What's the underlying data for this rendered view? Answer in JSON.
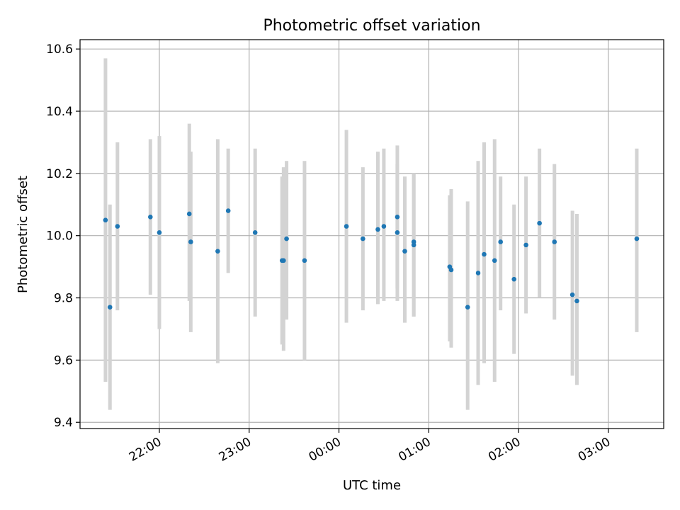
{
  "chart_data": {
    "type": "scatter",
    "title": "Photometric offset variation",
    "xlabel": "UTC time",
    "ylabel": "Photometric offset",
    "xlim": [
      "21:07",
      "03:37"
    ],
    "ylim": [
      9.38,
      10.63
    ],
    "x_ticks": [
      "22:00",
      "23:00",
      "00:00",
      "01:00",
      "02:00",
      "03:00"
    ],
    "y_ticks": [
      "9.4",
      "9.6",
      "9.8",
      "10.0",
      "10.2",
      "10.4",
      "10.6"
    ],
    "grid": true,
    "colors": {
      "point": "#1f77b4",
      "errorbar": "#d3d3d3",
      "grid": "#b0b0b0"
    },
    "points": [
      {
        "time": "21:24",
        "y": 10.05,
        "yerr_low": 9.53,
        "yerr_high": 10.57
      },
      {
        "time": "21:27",
        "y": 9.77,
        "yerr_low": 9.44,
        "yerr_high": 10.1
      },
      {
        "time": "21:32",
        "y": 10.03,
        "yerr_low": 9.76,
        "yerr_high": 10.3
      },
      {
        "time": "21:54",
        "y": 10.06,
        "yerr_low": 9.81,
        "yerr_high": 10.31
      },
      {
        "time": "22:00",
        "y": 10.01,
        "yerr_low": 9.7,
        "yerr_high": 10.32
      },
      {
        "time": "22:20",
        "y": 10.07,
        "yerr_low": 9.79,
        "yerr_high": 10.36
      },
      {
        "time": "22:21",
        "y": 9.98,
        "yerr_low": 9.69,
        "yerr_high": 10.27
      },
      {
        "time": "22:39",
        "y": 9.95,
        "yerr_low": 9.59,
        "yerr_high": 10.31
      },
      {
        "time": "22:46",
        "y": 10.08,
        "yerr_low": 9.88,
        "yerr_high": 10.28
      },
      {
        "time": "23:04",
        "y": 10.01,
        "yerr_low": 9.74,
        "yerr_high": 10.28
      },
      {
        "time": "23:22",
        "y": 9.92,
        "yerr_low": 9.65,
        "yerr_high": 10.19
      },
      {
        "time": "23:23",
        "y": 9.92,
        "yerr_low": 9.63,
        "yerr_high": 10.22
      },
      {
        "time": "23:25",
        "y": 9.99,
        "yerr_low": 9.73,
        "yerr_high": 10.24
      },
      {
        "time": "23:37",
        "y": 9.92,
        "yerr_low": 9.6,
        "yerr_high": 10.24
      },
      {
        "time": "00:05",
        "y": 10.03,
        "yerr_low": 9.72,
        "yerr_high": 10.34
      },
      {
        "time": "00:16",
        "y": 9.99,
        "yerr_low": 9.76,
        "yerr_high": 10.22
      },
      {
        "time": "00:26",
        "y": 10.02,
        "yerr_low": 9.78,
        "yerr_high": 10.27
      },
      {
        "time": "00:30",
        "y": 10.03,
        "yerr_low": 9.79,
        "yerr_high": 10.28
      },
      {
        "time": "00:39",
        "y": 10.06,
        "yerr_low": 9.83,
        "yerr_high": 10.29
      },
      {
        "time": "00:39",
        "y": 10.01,
        "yerr_low": 9.79,
        "yerr_high": 10.23
      },
      {
        "time": "00:44",
        "y": 9.95,
        "yerr_low": 9.72,
        "yerr_high": 10.19
      },
      {
        "time": "00:50",
        "y": 9.98,
        "yerr_low": 9.74,
        "yerr_high": 10.2
      },
      {
        "time": "00:50",
        "y": 9.97,
        "yerr_low": 9.74,
        "yerr_high": 10.2
      },
      {
        "time": "01:14",
        "y": 9.9,
        "yerr_low": 9.66,
        "yerr_high": 10.13
      },
      {
        "time": "01:15",
        "y": 9.89,
        "yerr_low": 9.64,
        "yerr_high": 10.15
      },
      {
        "time": "01:26",
        "y": 9.77,
        "yerr_low": 9.44,
        "yerr_high": 10.11
      },
      {
        "time": "01:33",
        "y": 9.88,
        "yerr_low": 9.52,
        "yerr_high": 10.24
      },
      {
        "time": "01:37",
        "y": 9.94,
        "yerr_low": 9.59,
        "yerr_high": 10.3
      },
      {
        "time": "01:44",
        "y": 9.92,
        "yerr_low": 9.53,
        "yerr_high": 10.31
      },
      {
        "time": "01:48",
        "y": 9.98,
        "yerr_low": 9.76,
        "yerr_high": 10.19
      },
      {
        "time": "01:57",
        "y": 9.86,
        "yerr_low": 9.62,
        "yerr_high": 10.1
      },
      {
        "time": "02:05",
        "y": 9.97,
        "yerr_low": 9.75,
        "yerr_high": 10.19
      },
      {
        "time": "02:14",
        "y": 10.04,
        "yerr_low": 9.8,
        "yerr_high": 10.28
      },
      {
        "time": "02:24",
        "y": 9.98,
        "yerr_low": 9.73,
        "yerr_high": 10.23
      },
      {
        "time": "02:36",
        "y": 9.81,
        "yerr_low": 9.55,
        "yerr_high": 10.08
      },
      {
        "time": "02:39",
        "y": 9.79,
        "yerr_low": 9.52,
        "yerr_high": 10.07
      },
      {
        "time": "03:19",
        "y": 9.99,
        "yerr_low": 9.69,
        "yerr_high": 10.28
      }
    ]
  }
}
